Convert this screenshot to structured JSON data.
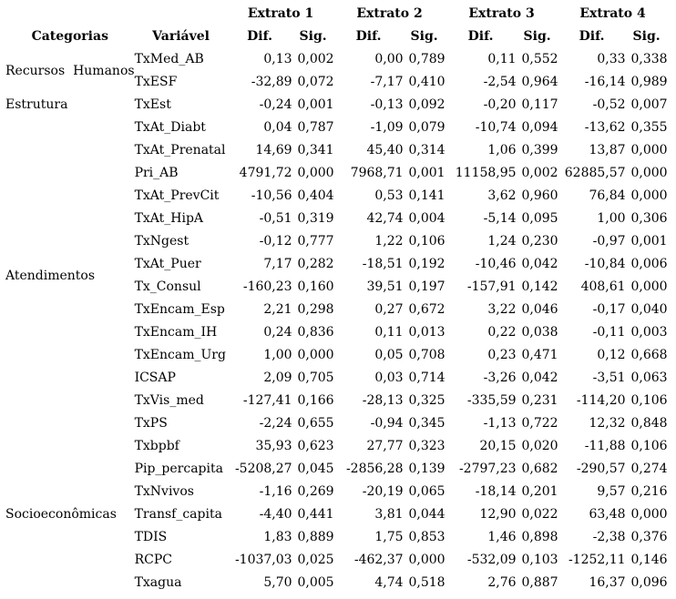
{
  "page": {
    "background_color": "#ffffff",
    "text_color": "#000000"
  },
  "table": {
    "header": {
      "categorias": "Categorias",
      "variavel": "Variável",
      "dif": "Dif.",
      "sig": "Sig.",
      "extratos": [
        "Extrato 1",
        "Extrato 2",
        "Extrato 3",
        "Extrato 4"
      ]
    },
    "groups": [
      {
        "category": "Recursos  Humanos",
        "rows": [
          {
            "variable": "TxMed_AB",
            "values": [
              "0,13",
              "0,002",
              "0,00",
              "0,789",
              "0,11",
              "0,552",
              "0,33",
              "0,338"
            ]
          },
          {
            "variable": "TxESF",
            "values": [
              "-32,89",
              "0,072",
              "-7,17",
              "0,410",
              "-2,54",
              "0,964",
              "-16,14",
              "0,989"
            ]
          }
        ]
      },
      {
        "category": "Estrutura",
        "rows": [
          {
            "variable": "TxEst",
            "values": [
              "-0,24",
              "0,001",
              "-0,13",
              "0,092",
              "-0,20",
              "0,117",
              "-0,52",
              "0,007"
            ]
          }
        ]
      },
      {
        "category": "Atendimentos",
        "rows": [
          {
            "variable": "TxAt_Diabt",
            "values": [
              "0,04",
              "0,787",
              "-1,09",
              "0,079",
              "-10,74",
              "0,094",
              "-13,62",
              "0,355"
            ]
          },
          {
            "variable": "TxAt_Prenatal",
            "values": [
              "14,69",
              "0,341",
              "45,40",
              "0,314",
              "1,06",
              "0,399",
              "13,87",
              "0,000"
            ]
          },
          {
            "variable": "Pri_AB",
            "values": [
              "4791,72",
              "0,000",
              "7968,71",
              "0,001",
              "11158,95",
              "0,002",
              "62885,57",
              "0,000"
            ]
          },
          {
            "variable": "TxAt_PrevCit",
            "values": [
              "-10,56",
              "0,404",
              "0,53",
              "0,141",
              "3,62",
              "0,960",
              "76,84",
              "0,000"
            ]
          },
          {
            "variable": "TxAt_HipA",
            "values": [
              "-0,51",
              "0,319",
              "42,74",
              "0,004",
              "-5,14",
              "0,095",
              "1,00",
              "0,306"
            ]
          },
          {
            "variable": "TxNgest",
            "values": [
              "-0,12",
              "0,777",
              "1,22",
              "0,106",
              "1,24",
              "0,230",
              "-0,97",
              "0,001"
            ]
          },
          {
            "variable": "TxAt_Puer",
            "values": [
              "7,17",
              "0,282",
              "-18,51",
              "0,192",
              "-10,46",
              "0,042",
              "-10,84",
              "0,006"
            ]
          },
          {
            "variable": "Tx_Consul",
            "values": [
              "-160,23",
              "0,160",
              "39,51",
              "0,197",
              "-157,91",
              "0,142",
              "408,61",
              "0,000"
            ]
          },
          {
            "variable": "TxEncam_Esp",
            "values": [
              "2,21",
              "0,298",
              "0,27",
              "0,672",
              "3,22",
              "0,046",
              "-0,17",
              "0,040"
            ]
          },
          {
            "variable": "TxEncam_IH",
            "values": [
              "0,24",
              "0,836",
              "0,11",
              "0,013",
              "0,22",
              "0,038",
              "-0,11",
              "0,003"
            ]
          },
          {
            "variable": "TxEncam_Urg",
            "values": [
              "1,00",
              "0,000",
              "0,05",
              "0,708",
              "0,23",
              "0,471",
              "0,12",
              "0,668"
            ]
          },
          {
            "variable": "ICSAP",
            "values": [
              "2,09",
              "0,705",
              "0,03",
              "0,714",
              "-3,26",
              "0,042",
              "-3,51",
              "0,063"
            ]
          },
          {
            "variable": "TxVis_med",
            "values": [
              "-127,41",
              "0,166",
              "-28,13",
              "0,325",
              "-335,59",
              "0,231",
              "-114,20",
              "0,106"
            ]
          },
          {
            "variable": "TxPS",
            "values": [
              "-2,24",
              "0,655",
              "-0,94",
              "0,345",
              "-1,13",
              "0,722",
              "12,32",
              "0,848"
            ]
          }
        ]
      },
      {
        "category": "Socioeconômicas",
        "rows": [
          {
            "variable": "Txbpbf",
            "values": [
              "35,93",
              "0,623",
              "27,77",
              "0,323",
              "20,15",
              "0,020",
              "-11,88",
              "0,106"
            ]
          },
          {
            "variable": "Pip_percapita",
            "values": [
              "-5208,27",
              "0,045",
              "-2856,28",
              "0,139",
              "-2797,23",
              "0,682",
              "-290,57",
              "0,274"
            ]
          },
          {
            "variable": "TxNvivos",
            "values": [
              "-1,16",
              "0,269",
              "-20,19",
              "0,065",
              "-18,14",
              "0,201",
              "9,57",
              "0,216"
            ]
          },
          {
            "variable": "Transf_capita",
            "values": [
              "-4,40",
              "0,441",
              "3,81",
              "0,044",
              "12,90",
              "0,022",
              "63,48",
              "0,000"
            ]
          },
          {
            "variable": "TDIS",
            "values": [
              "1,83",
              "0,889",
              "1,75",
              "0,853",
              "1,46",
              "0,898",
              "-2,38",
              "0,376"
            ]
          },
          {
            "variable": "RCPC",
            "values": [
              "-1037,03",
              "0,025",
              "-462,37",
              "0,000",
              "-532,09",
              "0,103",
              "-1252,11",
              "0,146"
            ]
          },
          {
            "variable": "Txagua",
            "values": [
              "5,70",
              "0,005",
              "4,74",
              "0,518",
              "2,76",
              "0,887",
              "16,37",
              "0,096"
            ]
          }
        ]
      }
    ]
  }
}
